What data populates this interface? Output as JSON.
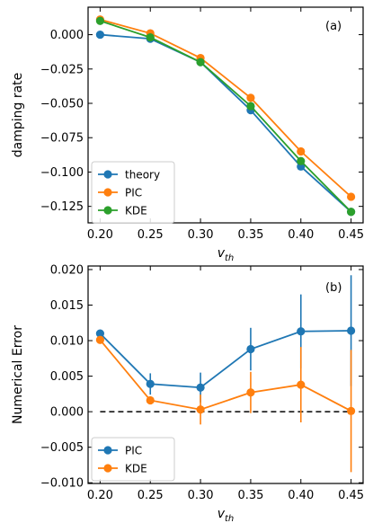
{
  "chart_data": [
    {
      "type": "line",
      "panel_label": "(a)",
      "x": [
        0.2,
        0.25,
        0.3,
        0.35,
        0.4,
        0.45
      ],
      "xlabel": "v",
      "xlabel_sub": "th",
      "ylabel": "damping rate",
      "xlim": [
        0.188,
        0.462
      ],
      "ylim": [
        -0.137,
        0.02
      ],
      "xticks": [
        "0.20",
        "0.25",
        "0.30",
        "0.35",
        "0.40",
        "0.45"
      ],
      "yticks": [
        0.0,
        -0.025,
        -0.05,
        -0.075,
        -0.1,
        -0.125
      ],
      "ytick_labels": [
        "0.000",
        "−0.025",
        "−0.050",
        "−0.075",
        "−0.100",
        "−0.125"
      ],
      "legend_position": "lower-left",
      "series": [
        {
          "name": "theory",
          "color": "#1f77b4",
          "values": [
            0.0,
            -0.003,
            -0.02,
            -0.055,
            -0.096,
            -0.129
          ]
        },
        {
          "name": "PIC",
          "color": "#ff7f0e",
          "values": [
            0.011,
            0.001,
            -0.017,
            -0.046,
            -0.085,
            -0.118
          ]
        },
        {
          "name": "KDE",
          "color": "#2ca02c",
          "values": [
            0.01,
            -0.002,
            -0.02,
            -0.052,
            -0.092,
            -0.129
          ]
        }
      ]
    },
    {
      "type": "line",
      "panel_label": "(b)",
      "x": [
        0.2,
        0.25,
        0.3,
        0.35,
        0.4,
        0.45
      ],
      "xlabel": "v",
      "xlabel_sub": "th",
      "ylabel": "Numerical Error",
      "xlim": [
        0.188,
        0.462
      ],
      "ylim": [
        -0.0101,
        0.0205
      ],
      "xticks": [
        "0.20",
        "0.25",
        "0.30",
        "0.35",
        "0.40",
        "0.45"
      ],
      "yticks": [
        -0.01,
        -0.005,
        0.0,
        0.005,
        0.01,
        0.015,
        0.02
      ],
      "ytick_labels": [
        "−0.010",
        "−0.005",
        "0.000",
        "0.005",
        "0.010",
        "0.015",
        "0.020"
      ],
      "legend_position": "lower-left",
      "reference_line": {
        "y": 0.0,
        "style": "dashed",
        "color": "#000000"
      },
      "series": [
        {
          "name": "PIC",
          "color": "#1f77b4",
          "values": [
            0.011,
            0.0039,
            0.0034,
            0.0088,
            0.0113,
            0.0114
          ],
          "errors": [
            0.0,
            0.0015,
            0.0021,
            0.003,
            0.0052,
            0.0078
          ]
        },
        {
          "name": "KDE",
          "color": "#ff7f0e",
          "values": [
            0.0101,
            0.0016,
            0.0003,
            0.0027,
            0.0038,
            0.0001
          ],
          "errors": [
            0.0,
            0.0,
            0.0021,
            0.0029,
            0.0053,
            0.0086
          ]
        }
      ]
    }
  ]
}
